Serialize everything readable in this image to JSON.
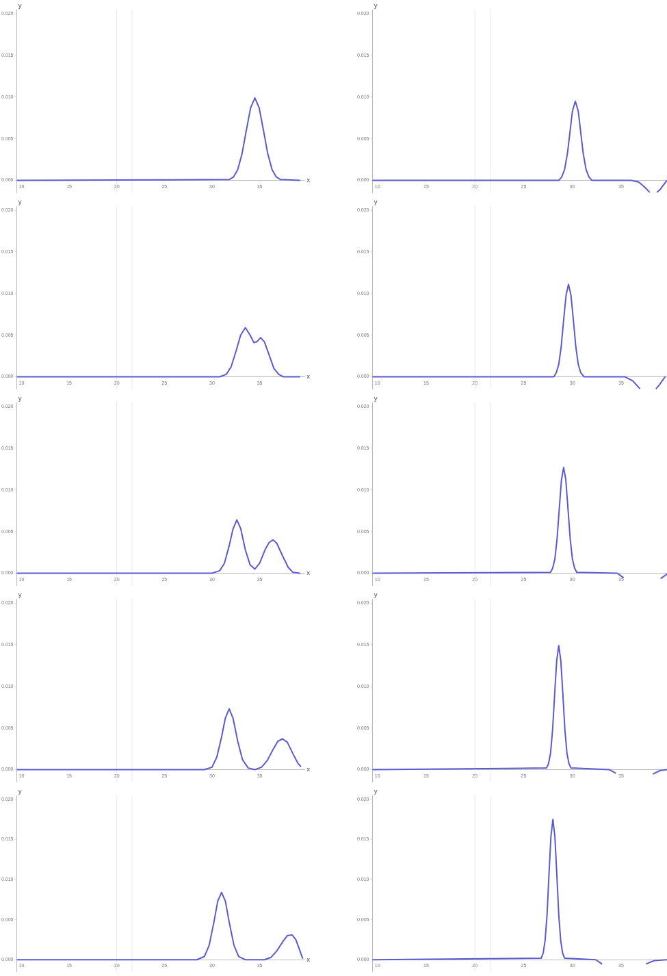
{
  "chart_data": [
    {
      "type": "line",
      "xlabel": "x",
      "ylabel": "y",
      "color": "#5a5ad2",
      "marker": "none",
      "grid": false,
      "xlim": [
        9.5,
        39.7
      ],
      "ylim": [
        -0.0015,
        0.0205
      ],
      "xticks": [
        10,
        15,
        20,
        25,
        30,
        35
      ],
      "yticks": [
        {
          "value": 0,
          "label": "0.000"
        },
        {
          "value": 0.005,
          "label": "0.005"
        },
        {
          "value": 0.01,
          "label": "0.010"
        },
        {
          "value": 0.015,
          "label": "0.015"
        },
        {
          "value": 0.02,
          "label": "0.020"
        }
      ],
      "ref_lines": [
        {
          "axis": "x",
          "value": 20,
          "color": "#e8e8e8"
        },
        {
          "axis": "x",
          "value": 21.6,
          "color": "#e8e8e8"
        }
      ],
      "x": [
        9.5,
        31.8,
        32.25,
        32.7,
        33.15,
        33.6,
        34.05,
        34.5,
        34.95,
        35.4,
        35.85,
        36.3,
        36.75,
        37.2,
        39.2
      ],
      "values": [
        0,
        0.0001,
        0.0004,
        0.0013,
        0.0032,
        0.006,
        0.0087,
        0.0099,
        0.0087,
        0.006,
        0.0032,
        0.0013,
        0.0004,
        0.0001,
        0
      ]
    },
    {
      "type": "line",
      "ylabel": "y",
      "color": "#5a5ad2",
      "marker": "none",
      "grid": false,
      "xlim": [
        9.5,
        39.7
      ],
      "ylim": [
        -0.0015,
        0.0205
      ],
      "xticks": [
        10,
        15,
        20,
        25,
        30,
        35
      ],
      "yticks": [
        {
          "value": 0,
          "label": "0.000"
        },
        {
          "value": 0.005,
          "label": "0.005"
        },
        {
          "value": 0.01,
          "label": "0.010"
        },
        {
          "value": 0.015,
          "label": "0.015"
        },
        {
          "value": 0.02,
          "label": "0.020"
        }
      ],
      "ref_lines": [
        {
          "axis": "x",
          "value": 20,
          "color": "#e8e8e8"
        },
        {
          "axis": "x",
          "value": 21.6,
          "color": "#e8e8e8"
        }
      ],
      "x": [
        9.5,
        28.6,
        28.9,
        29.2,
        29.5,
        29.75,
        30.0,
        30.3,
        30.6,
        30.85,
        31.1,
        31.4,
        31.7,
        32.0,
        36.0,
        36.8,
        37.4,
        37.9,
        38.4,
        38.7,
        39.0,
        39.3,
        39.7
      ],
      "values": [
        0,
        0,
        0.0004,
        0.0013,
        0.0033,
        0.0058,
        0.0083,
        0.0095,
        0.0083,
        0.0058,
        0.0033,
        0.0013,
        0.0004,
        0,
        0,
        -0.0002,
        -0.0008,
        -0.0014,
        null,
        -0.0014,
        -0.0011,
        -0.0006,
        0
      ]
    },
    {
      "type": "line",
      "xlabel": "x",
      "ylabel": "y",
      "color": "#5a5ad2",
      "marker": "none",
      "grid": false,
      "xlim": [
        9.5,
        39.7
      ],
      "ylim": [
        -0.0015,
        0.0205
      ],
      "xticks": [
        10,
        15,
        20,
        25,
        30,
        35
      ],
      "yticks": [
        {
          "value": 0,
          "label": "0.000"
        },
        {
          "value": 0.005,
          "label": "0.005"
        },
        {
          "value": 0.01,
          "label": "0.010"
        },
        {
          "value": 0.015,
          "label": "0.015"
        },
        {
          "value": 0.02,
          "label": "0.020"
        }
      ],
      "ref_lines": [
        {
          "axis": "x",
          "value": 20,
          "color": "#e8e8e8"
        },
        {
          "axis": "x",
          "value": 21.6,
          "color": "#e8e8e8"
        }
      ],
      "x": [
        9.5,
        30.8,
        31.5,
        32.0,
        32.5,
        33.0,
        33.5,
        34.0,
        34.4,
        34.7,
        35.1,
        35.5,
        36.0,
        36.5,
        37.0,
        37.5,
        39.2
      ],
      "values": [
        0,
        0,
        0.0003,
        0.0012,
        0.003,
        0.005,
        0.0059,
        0.005,
        0.0041,
        0.0042,
        0.0047,
        0.0042,
        0.0026,
        0.001,
        0.0003,
        0,
        0
      ]
    },
    {
      "type": "line",
      "ylabel": "y",
      "color": "#5a5ad2",
      "marker": "none",
      "grid": false,
      "xlim": [
        9.5,
        39.7
      ],
      "ylim": [
        -0.0015,
        0.0205
      ],
      "xticks": [
        10,
        15,
        20,
        25,
        30,
        35
      ],
      "yticks": [
        {
          "value": 0,
          "label": "0.000"
        },
        {
          "value": 0.005,
          "label": "0.005"
        },
        {
          "value": 0.01,
          "label": "0.010"
        },
        {
          "value": 0.015,
          "label": "0.015"
        },
        {
          "value": 0.02,
          "label": "0.020"
        }
      ],
      "ref_lines": [
        {
          "axis": "x",
          "value": 20,
          "color": "#e8e8e8"
        },
        {
          "axis": "x",
          "value": 21.6,
          "color": "#e8e8e8"
        }
      ],
      "x": [
        9.5,
        28.1,
        28.35,
        28.6,
        28.85,
        29.1,
        29.35,
        29.6,
        29.85,
        30.1,
        30.35,
        30.6,
        30.85,
        31.2,
        35.4,
        36.2,
        36.9,
        37.7,
        38.6,
        38.9,
        39.2,
        39.5
      ],
      "values": [
        0,
        0,
        0.0005,
        0.0015,
        0.0036,
        0.0068,
        0.0098,
        0.0111,
        0.0098,
        0.0068,
        0.0036,
        0.0015,
        0.0005,
        0,
        0,
        -0.0005,
        -0.0014,
        null,
        -0.0014,
        -0.001,
        -0.0005,
        0
      ]
    },
    {
      "type": "line",
      "xlabel": "x",
      "ylabel": "y",
      "color": "#5a5ad2",
      "marker": "none",
      "grid": false,
      "xlim": [
        9.5,
        39.7
      ],
      "ylim": [
        -0.0015,
        0.0205
      ],
      "xticks": [
        10,
        15,
        20,
        25,
        30,
        35
      ],
      "yticks": [
        {
          "value": 0,
          "label": "0.000"
        },
        {
          "value": 0.005,
          "label": "0.005"
        },
        {
          "value": 0.01,
          "label": "0.010"
        },
        {
          "value": 0.015,
          "label": "0.015"
        },
        {
          "value": 0.02,
          "label": "0.020"
        }
      ],
      "ref_lines": [
        {
          "axis": "x",
          "value": 20,
          "color": "#e8e8e8"
        },
        {
          "axis": "x",
          "value": 21.6,
          "color": "#e8e8e8"
        }
      ],
      "x": [
        9.5,
        30.0,
        30.8,
        31.3,
        31.8,
        32.2,
        32.6,
        33.0,
        33.5,
        34.0,
        34.5,
        35.0,
        35.6,
        36.0,
        36.4,
        36.8,
        37.4,
        38.0,
        38.5,
        39.2
      ],
      "values": [
        0,
        0,
        0.0003,
        0.0012,
        0.0033,
        0.0053,
        0.0064,
        0.0054,
        0.0028,
        0.001,
        0.0005,
        0.0012,
        0.0029,
        0.0037,
        0.004,
        0.0036,
        0.0021,
        0.0007,
        0.0001,
        0
      ]
    },
    {
      "type": "line",
      "ylabel": "y",
      "color": "#5a5ad2",
      "marker": "none",
      "grid": false,
      "xlim": [
        9.5,
        39.7
      ],
      "ylim": [
        -0.0015,
        0.0205
      ],
      "xticks": [
        10,
        15,
        20,
        25,
        30,
        35
      ],
      "yticks": [
        {
          "value": 0,
          "label": "0.000"
        },
        {
          "value": 0.005,
          "label": "0.005"
        },
        {
          "value": 0.01,
          "label": "0.010"
        },
        {
          "value": 0.015,
          "label": "0.015"
        },
        {
          "value": 0.02,
          "label": "0.020"
        }
      ],
      "ref_lines": [
        {
          "axis": "x",
          "value": 20,
          "color": "#e8e8e8"
        },
        {
          "axis": "x",
          "value": 21.6,
          "color": "#e8e8e8"
        }
      ],
      "x": [
        9.5,
        27.75,
        27.975,
        28.2,
        28.425,
        28.65,
        28.875,
        29.1,
        29.325,
        29.55,
        29.775,
        30.0,
        30.225,
        30.45,
        34.6,
        35.2,
        35.8,
        36.6,
        38.6,
        39.1,
        39.7
      ],
      "values": [
        0,
        0.0001,
        0.0006,
        0.0017,
        0.0041,
        0.0077,
        0.0112,
        0.0127,
        0.0112,
        0.0077,
        0.0041,
        0.0017,
        0.0006,
        0.0001,
        0,
        -0.0005,
        null,
        null,
        null,
        -0.0006,
        -0.0001
      ]
    },
    {
      "type": "line",
      "xlabel": "x",
      "ylabel": "y",
      "color": "#5a5ad2",
      "marker": "none",
      "grid": false,
      "xlim": [
        9.5,
        39.7
      ],
      "ylim": [
        -0.0015,
        0.0205
      ],
      "xticks": [
        10,
        15,
        20,
        25,
        30,
        35
      ],
      "yticks": [
        {
          "value": 0,
          "label": "0.000"
        },
        {
          "value": 0.005,
          "label": "0.005"
        },
        {
          "value": 0.01,
          "label": "0.010"
        },
        {
          "value": 0.015,
          "label": "0.015"
        },
        {
          "value": 0.02,
          "label": "0.020"
        }
      ],
      "ref_lines": [
        {
          "axis": "x",
          "value": 20,
          "color": "#e8e8e8"
        },
        {
          "axis": "x",
          "value": 21.6,
          "color": "#e8e8e8"
        }
      ],
      "x": [
        9.5,
        29.2,
        30.0,
        30.5,
        31.0,
        31.4,
        31.8,
        32.2,
        32.7,
        33.2,
        33.8,
        34.5,
        35.2,
        35.8,
        36.4,
        36.9,
        37.4,
        37.9,
        38.5,
        39.0,
        39.3
      ],
      "values": [
        0,
        0,
        0.0003,
        0.0015,
        0.0039,
        0.0062,
        0.0073,
        0.0062,
        0.0034,
        0.0012,
        0.0002,
        0,
        0.0003,
        0.0011,
        0.0024,
        0.0034,
        0.0037,
        0.0033,
        0.0019,
        0.0008,
        0.0004
      ]
    },
    {
      "type": "line",
      "ylabel": "y",
      "color": "#5a5ad2",
      "marker": "none",
      "grid": false,
      "xlim": [
        9.5,
        39.7
      ],
      "ylim": [
        -0.0015,
        0.0205
      ],
      "xticks": [
        10,
        15,
        20,
        25,
        30,
        35
      ],
      "yticks": [
        {
          "value": 0,
          "label": "0.000"
        },
        {
          "value": 0.005,
          "label": "0.005"
        },
        {
          "value": 0.01,
          "label": "0.010"
        },
        {
          "value": 0.015,
          "label": "0.015"
        },
        {
          "value": 0.02,
          "label": "0.020"
        }
      ],
      "ref_lines": [
        {
          "axis": "x",
          "value": 20,
          "color": "#e8e8e8"
        },
        {
          "axis": "x",
          "value": 21.6,
          "color": "#e8e8e8"
        }
      ],
      "x": [
        9.5,
        27.34,
        27.55,
        27.76,
        27.97,
        28.18,
        28.39,
        28.6,
        28.81,
        29.02,
        29.23,
        29.44,
        29.65,
        29.86,
        33.8,
        34.4,
        35.1,
        36.0,
        37.6,
        38.3,
        39.0,
        39.7
      ],
      "values": [
        0,
        0.0002,
        0.0007,
        0.002,
        0.0048,
        0.0091,
        0.0131,
        0.0149,
        0.0131,
        0.0091,
        0.0048,
        0.002,
        0.0007,
        0.0002,
        0,
        -0.0004,
        null,
        null,
        null,
        -0.0005,
        -0.0001,
        0
      ]
    },
    {
      "type": "line",
      "xlabel": "x",
      "ylabel": "y",
      "color": "#5a5ad2",
      "marker": "none",
      "grid": false,
      "xlim": [
        9.5,
        39.7
      ],
      "ylim": [
        -0.0015,
        0.0205
      ],
      "xticks": [
        10,
        15,
        20,
        25,
        30,
        35
      ],
      "yticks": [
        {
          "value": 0,
          "label": "0.000"
        },
        {
          "value": 0.005,
          "label": "0.005"
        },
        {
          "value": 0.01,
          "label": "0.010"
        },
        {
          "value": 0.015,
          "label": "0.015"
        },
        {
          "value": 0.02,
          "label": "0.020"
        }
      ],
      "ref_lines": [
        {
          "axis": "x",
          "value": 20,
          "color": "#e8e8e8"
        },
        {
          "axis": "x",
          "value": 21.6,
          "color": "#e8e8e8"
        }
      ],
      "x": [
        9.5,
        28.4,
        29.2,
        29.7,
        30.2,
        30.6,
        31.0,
        31.4,
        31.8,
        32.3,
        32.8,
        33.5,
        35.5,
        36.2,
        36.8,
        37.4,
        37.9,
        38.4,
        38.8,
        39.2,
        39.5
      ],
      "values": [
        0,
        0,
        0.0004,
        0.0018,
        0.0047,
        0.0073,
        0.0084,
        0.0073,
        0.0047,
        0.0018,
        0.0004,
        0,
        0,
        0.0003,
        0.0011,
        0.0022,
        0.003,
        0.0031,
        0.0025,
        0.0012,
        0.0002
      ]
    },
    {
      "type": "line",
      "ylabel": "y",
      "color": "#5a5ad2",
      "marker": "none",
      "grid": false,
      "xlim": [
        9.5,
        39.7
      ],
      "ylim": [
        -0.0015,
        0.0205
      ],
      "xticks": [
        10,
        15,
        20,
        25,
        30,
        35
      ],
      "yticks": [
        {
          "value": 0,
          "label": "0.000"
        },
        {
          "value": 0.005,
          "label": "0.005"
        },
        {
          "value": 0.01,
          "label": "0.010"
        },
        {
          "value": 0.015,
          "label": "0.015"
        },
        {
          "value": 0.02,
          "label": "0.020"
        }
      ],
      "ref_lines": [
        {
          "axis": "x",
          "value": 20,
          "color": "#e8e8e8"
        },
        {
          "axis": "x",
          "value": 21.6,
          "color": "#e8e8e8"
        }
      ],
      "x": [
        9.5,
        26.8,
        27.0,
        27.2,
        27.4,
        27.6,
        27.8,
        28.0,
        28.2,
        28.4,
        28.6,
        28.8,
        29.0,
        29.2,
        32.4,
        33.0,
        34.5,
        37.6,
        38.4,
        39.7
      ],
      "values": [
        0,
        0.0002,
        0.0008,
        0.0024,
        0.0056,
        0.0107,
        0.0154,
        0.0175,
        0.0154,
        0.0107,
        0.0056,
        0.0024,
        0.0008,
        0.0002,
        0,
        -0.0005,
        null,
        -0.0005,
        -0.0001,
        0
      ]
    }
  ]
}
